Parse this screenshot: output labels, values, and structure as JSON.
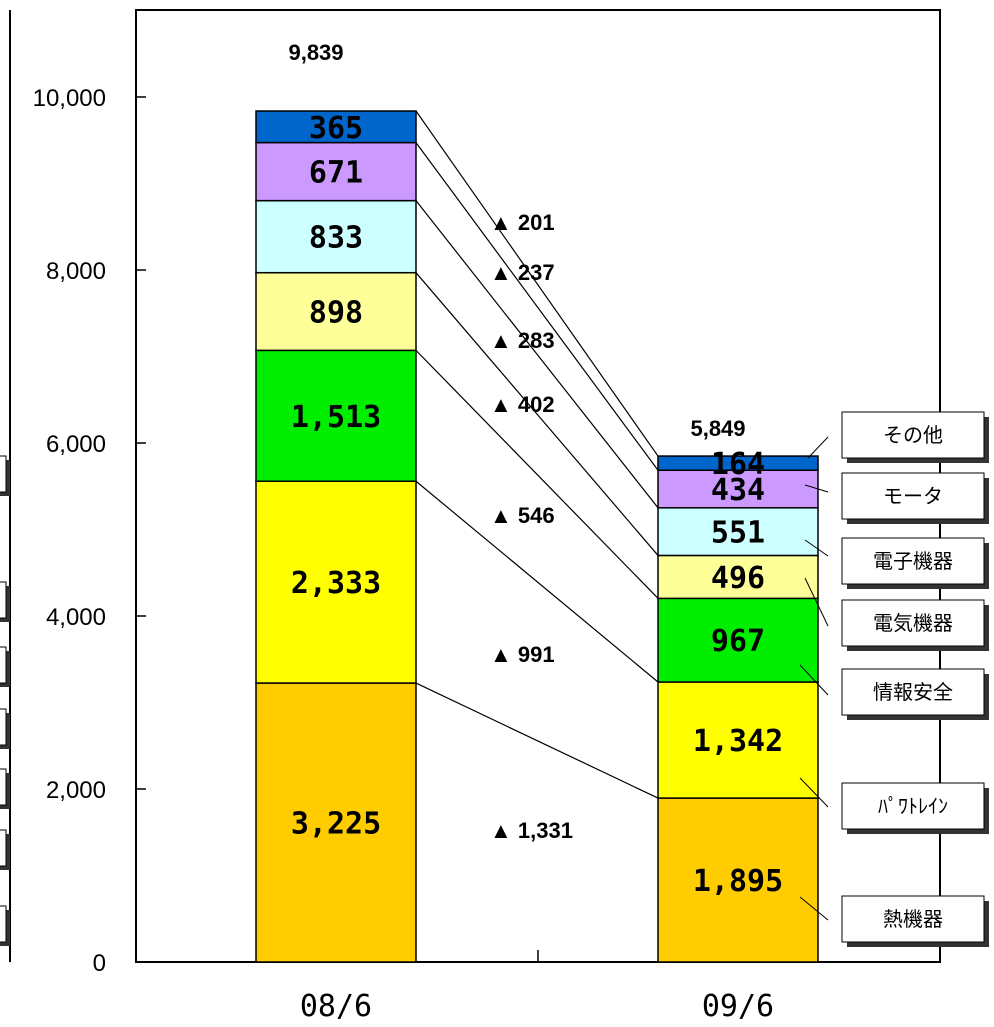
{
  "chart_data": {
    "type": "bar",
    "stacked": true,
    "categories": [
      "08/6",
      "09/6"
    ],
    "totals": [
      "9,839",
      "5,849"
    ],
    "ylim": [
      0,
      11000
    ],
    "yticks": [
      {
        "value": 0,
        "label": "0"
      },
      {
        "value": 2000,
        "label": "2,000"
      },
      {
        "value": 4000,
        "label": "4,000"
      },
      {
        "value": 6000,
        "label": "6,000"
      },
      {
        "value": 8000,
        "label": "8,000"
      },
      {
        "value": 10000,
        "label": "10,000"
      }
    ],
    "series": [
      {
        "name": "熱機器",
        "color": "#FFCC00",
        "values": [
          3225,
          1895
        ],
        "labels": [
          "3,225",
          "1,895"
        ],
        "change": "▲ 1,331"
      },
      {
        "name": "ﾊﾟﾜﾄﾚｲﾝ",
        "color": "#FFFF00",
        "values": [
          2333,
          1342
        ],
        "labels": [
          "2,333",
          "1,342"
        ],
        "change": "▲ 991"
      },
      {
        "name": "情報安全",
        "color": "#00EE00",
        "values": [
          1513,
          967
        ],
        "labels": [
          "1,513",
          "967"
        ],
        "change": "▲ 546"
      },
      {
        "name": "電気機器",
        "color": "#FFFF99",
        "values": [
          898,
          496
        ],
        "labels": [
          "898",
          "496"
        ],
        "change": "▲ 402"
      },
      {
        "name": "電子機器",
        "color": "#CCFFFF",
        "values": [
          833,
          551
        ],
        "labels": [
          "833",
          "551"
        ],
        "change": "▲ 283"
      },
      {
        "name": "モータ",
        "color": "#CC99FF",
        "values": [
          671,
          434
        ],
        "labels": [
          "671",
          "434"
        ],
        "change": "▲ 237"
      },
      {
        "name": "その他",
        "color": "#0066CC",
        "values": [
          365,
          164
        ],
        "labels": [
          "365",
          "164"
        ],
        "change": "▲ 201"
      }
    ],
    "grid": false,
    "legend_position": "right"
  }
}
